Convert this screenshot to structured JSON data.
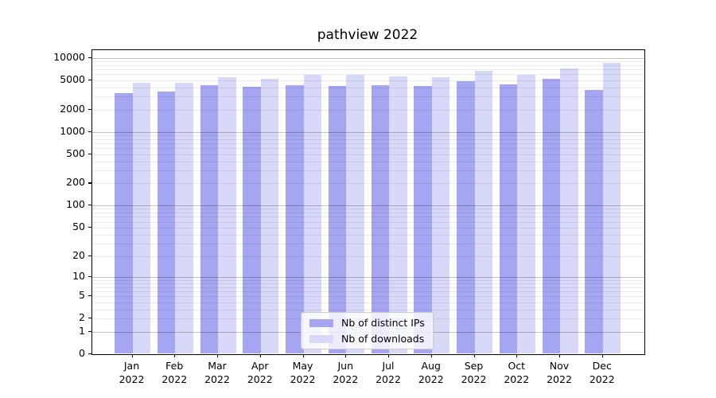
{
  "title": "pathview 2022",
  "chart_data": {
    "type": "bar",
    "title": "pathview 2022",
    "yscale": "log10(1+x)",
    "ylim": [
      0,
      10000
    ],
    "y_ticks": [
      0,
      1,
      2,
      5,
      10,
      20,
      50,
      100,
      200,
      500,
      1000,
      2000,
      5000,
      10000
    ],
    "grid": true,
    "legend_position": "inside-bottom-center",
    "categories": [
      "Jan",
      "Feb",
      "Mar",
      "Apr",
      "May",
      "Jun",
      "Jul",
      "Aug",
      "Sep",
      "Oct",
      "Nov",
      "Dec"
    ],
    "year": "2022",
    "series": [
      {
        "name": "Nb of distinct IPs",
        "color": "#a5a5f2",
        "values": [
          3370,
          3510,
          4310,
          4100,
          4310,
          4210,
          4240,
          4210,
          4880,
          4390,
          5180,
          3660
        ]
      },
      {
        "name": "Nb of downloads",
        "color": "#d8d8f8",
        "values": [
          4580,
          4650,
          5520,
          5250,
          5860,
          5950,
          5550,
          5520,
          6630,
          5860,
          7200,
          8600
        ]
      }
    ],
    "grid_major_color": "#c6c6c6",
    "grid_minor_color": "#ececec",
    "frame_color": "#000000"
  }
}
